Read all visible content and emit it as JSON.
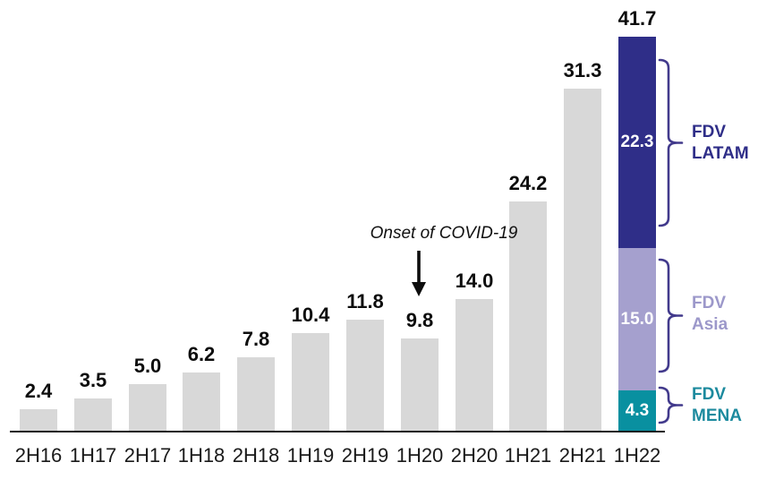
{
  "chart_data": {
    "type": "bar",
    "title": "",
    "categories": [
      "2H16",
      "1H17",
      "2H17",
      "1H18",
      "2H18",
      "1H19",
      "2H19",
      "1H20",
      "2H20",
      "1H21",
      "2H21",
      "1H22"
    ],
    "values": [
      2.4,
      3.5,
      5.0,
      6.2,
      7.8,
      10.4,
      11.8,
      9.8,
      14.0,
      24.2,
      31.3,
      41.7
    ],
    "value_labels": [
      "2.4",
      "3.5",
      "5.0",
      "6.2",
      "7.8",
      "10.4",
      "11.8",
      "9.8",
      "14.0",
      "24.2",
      "31.3",
      "41.7"
    ],
    "bar_color": "#D8D8D8",
    "axis": {
      "y_axis_shown": false,
      "gridlines": false,
      "x_baseline_shown": true
    },
    "stacked_bar": {
      "category": "1H22",
      "total": 41.7,
      "total_label": "41.7",
      "segments": [
        {
          "name": "FDV LATAM",
          "value": 22.3,
          "label": "22.3",
          "color": "#2F2E88",
          "text_color": "#2F2E88",
          "label_lines": [
            "FDV",
            "LATAM"
          ]
        },
        {
          "name": "FDV Asia",
          "value": 15.0,
          "label": "15.0",
          "color": "#A5A0CE",
          "text_color": "#9C98CA",
          "label_lines": [
            "FDV",
            "Asia"
          ]
        },
        {
          "name": "FDV MENA",
          "value": 4.3,
          "label": "4.3",
          "color": "#0990A0",
          "text_color": "#1C8A9E",
          "label_lines": [
            "FDV",
            "MENA"
          ]
        }
      ]
    },
    "annotation": {
      "text": "Onset of COVID-19",
      "target_category": "1H20"
    },
    "legend_position": "right",
    "brace_color": "#423A8C"
  }
}
